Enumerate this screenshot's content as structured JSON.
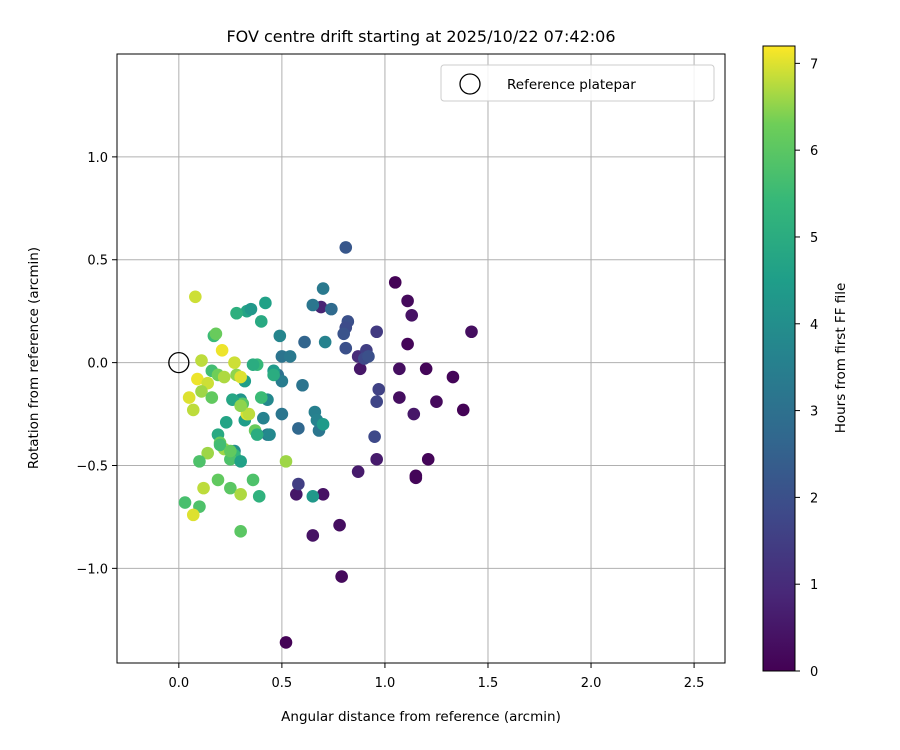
{
  "chart_data": {
    "type": "scatter",
    "title": "FOV centre drift starting at 2025/10/22 07:42:06",
    "xlabel": "Angular distance from reference (arcmin)",
    "ylabel": "Rotation from reference (arcmin)",
    "colorbar_label": "Hours from first FF file",
    "xlim": [
      -0.3,
      2.65
    ],
    "ylim": [
      -1.46,
      1.5
    ],
    "xticks": [
      0.0,
      0.5,
      1.0,
      1.5,
      2.0,
      2.5
    ],
    "xtick_labels": [
      "0.0",
      "0.5",
      "1.0",
      "1.5",
      "2.0",
      "2.5"
    ],
    "yticks": [
      1.0,
      0.5,
      0.0,
      -0.5,
      -1.0
    ],
    "ytick_labels": [
      "1.0",
      "0.5",
      "0.0",
      "−0.5",
      "−1.0"
    ],
    "colorbar_range": [
      0,
      7.2
    ],
    "colorbar_ticks": [
      0,
      1,
      2,
      3,
      4,
      5,
      6,
      7
    ],
    "colorbar_tick_labels": [
      "0",
      "1",
      "2",
      "3",
      "4",
      "5",
      "6",
      "7"
    ],
    "grid": true,
    "legend": {
      "position": "top-right",
      "entries": [
        "Reference platepar"
      ]
    },
    "reference_point": {
      "x": 0.0,
      "y": 0.0
    },
    "points": [
      {
        "x": 0.52,
        "y": -1.36,
        "h": 0.05
      },
      {
        "x": 0.79,
        "y": -1.04,
        "h": 0.2
      },
      {
        "x": 0.78,
        "y": -0.79,
        "h": 0.3
      },
      {
        "x": 0.65,
        "y": -0.84,
        "h": 0.4
      },
      {
        "x": 0.57,
        "y": -0.64,
        "h": 0.5
      },
      {
        "x": 0.7,
        "y": -0.64,
        "h": 0.4
      },
      {
        "x": 0.87,
        "y": -0.53,
        "h": 0.6
      },
      {
        "x": 0.96,
        "y": -0.47,
        "h": 0.6
      },
      {
        "x": 1.15,
        "y": -0.56,
        "h": 0.15
      },
      {
        "x": 1.15,
        "y": -0.55,
        "h": 0.1
      },
      {
        "x": 1.21,
        "y": -0.47,
        "h": 0.1
      },
      {
        "x": 1.05,
        "y": 0.39,
        "h": 0.05
      },
      {
        "x": 1.11,
        "y": 0.3,
        "h": 0.2
      },
      {
        "x": 1.13,
        "y": 0.23,
        "h": 0.4
      },
      {
        "x": 1.42,
        "y": 0.15,
        "h": 0.3
      },
      {
        "x": 1.11,
        "y": 0.09,
        "h": 0.1
      },
      {
        "x": 1.07,
        "y": -0.03,
        "h": 0.3
      },
      {
        "x": 1.2,
        "y": -0.03,
        "h": 0.1
      },
      {
        "x": 1.33,
        "y": -0.07,
        "h": 0.1
      },
      {
        "x": 1.38,
        "y": -0.23,
        "h": 0.05
      },
      {
        "x": 1.25,
        "y": -0.19,
        "h": 0.2
      },
      {
        "x": 1.07,
        "y": -0.17,
        "h": 0.3
      },
      {
        "x": 1.14,
        "y": -0.25,
        "h": 0.5
      },
      {
        "x": 0.96,
        "y": 0.15,
        "h": 1.4
      },
      {
        "x": 0.97,
        "y": -0.13,
        "h": 1.6
      },
      {
        "x": 0.96,
        "y": -0.19,
        "h": 1.7
      },
      {
        "x": 0.95,
        "y": -0.36,
        "h": 1.8
      },
      {
        "x": 0.88,
        "y": -0.03,
        "h": 0.5
      },
      {
        "x": 0.87,
        "y": 0.03,
        "h": 1.0
      },
      {
        "x": 0.91,
        "y": 0.06,
        "h": 1.5
      },
      {
        "x": 0.9,
        "y": 0.02,
        "h": 1.8
      },
      {
        "x": 0.92,
        "y": 0.03,
        "h": 2.0
      },
      {
        "x": 0.81,
        "y": 0.56,
        "h": 2.2
      },
      {
        "x": 0.82,
        "y": 0.2,
        "h": 2.0
      },
      {
        "x": 0.81,
        "y": 0.17,
        "h": 1.9
      },
      {
        "x": 0.8,
        "y": 0.14,
        "h": 2.1
      },
      {
        "x": 0.81,
        "y": 0.07,
        "h": 2.0
      },
      {
        "x": 0.69,
        "y": 0.27,
        "h": 0.8
      },
      {
        "x": 0.7,
        "y": 0.36,
        "h": 3.3
      },
      {
        "x": 0.74,
        "y": 0.26,
        "h": 2.8
      },
      {
        "x": 0.65,
        "y": 0.28,
        "h": 3.2
      },
      {
        "x": 0.61,
        "y": 0.1,
        "h": 2.6
      },
      {
        "x": 0.71,
        "y": 0.1,
        "h": 3.6
      },
      {
        "x": 0.58,
        "y": -0.59,
        "h": 1.5
      },
      {
        "x": 0.58,
        "y": -0.32,
        "h": 2.7
      },
      {
        "x": 0.6,
        "y": -0.11,
        "h": 3.1
      },
      {
        "x": 0.5,
        "y": 0.03,
        "h": 3.1
      },
      {
        "x": 0.54,
        "y": 0.03,
        "h": 3.3
      },
      {
        "x": 0.48,
        "y": -0.06,
        "h": 3.0
      },
      {
        "x": 0.5,
        "y": -0.09,
        "h": 3.4
      },
      {
        "x": 0.5,
        "y": -0.25,
        "h": 3.2
      },
      {
        "x": 0.49,
        "y": 0.13,
        "h": 3.7
      },
      {
        "x": 0.66,
        "y": -0.24,
        "h": 3.5
      },
      {
        "x": 0.68,
        "y": -0.33,
        "h": 3.2
      },
      {
        "x": 0.67,
        "y": -0.28,
        "h": 3.6
      },
      {
        "x": 0.7,
        "y": -0.3,
        "h": 4.4
      },
      {
        "x": 0.65,
        "y": -0.65,
        "h": 4.3
      },
      {
        "x": 0.52,
        "y": -0.48,
        "h": 6.6
      },
      {
        "x": 0.43,
        "y": -0.35,
        "h": 3.3
      },
      {
        "x": 0.44,
        "y": -0.35,
        "h": 3.8
      },
      {
        "x": 0.43,
        "y": -0.18,
        "h": 3.8
      },
      {
        "x": 0.41,
        "y": -0.27,
        "h": 3.6
      },
      {
        "x": 0.46,
        "y": -0.04,
        "h": 4.4
      },
      {
        "x": 0.46,
        "y": -0.06,
        "h": 5.0
      },
      {
        "x": 0.42,
        "y": 0.29,
        "h": 4.6
      },
      {
        "x": 0.4,
        "y": 0.2,
        "h": 4.9
      },
      {
        "x": 0.33,
        "y": 0.25,
        "h": 4.7
      },
      {
        "x": 0.35,
        "y": 0.26,
        "h": 4.3
      },
      {
        "x": 0.28,
        "y": 0.24,
        "h": 5.1
      },
      {
        "x": 0.38,
        "y": -0.01,
        "h": 5.4
      },
      {
        "x": 0.36,
        "y": -0.01,
        "h": 5.0
      },
      {
        "x": 0.32,
        "y": -0.09,
        "h": 4.5
      },
      {
        "x": 0.3,
        "y": -0.18,
        "h": 4.2
      },
      {
        "x": 0.3,
        "y": -0.2,
        "h": 5.2
      },
      {
        "x": 0.31,
        "y": -0.2,
        "h": 5.9
      },
      {
        "x": 0.26,
        "y": -0.18,
        "h": 4.8
      },
      {
        "x": 0.23,
        "y": -0.29,
        "h": 4.7
      },
      {
        "x": 0.32,
        "y": -0.28,
        "h": 4.5
      },
      {
        "x": 0.37,
        "y": -0.33,
        "h": 6.2
      },
      {
        "x": 0.38,
        "y": -0.35,
        "h": 5.0
      },
      {
        "x": 0.4,
        "y": -0.17,
        "h": 5.5
      },
      {
        "x": 0.27,
        "y": -0.43,
        "h": 4.0
      },
      {
        "x": 0.27,
        "y": -0.45,
        "h": 5.4
      },
      {
        "x": 0.25,
        "y": -0.47,
        "h": 5.8
      },
      {
        "x": 0.3,
        "y": -0.48,
        "h": 4.6
      },
      {
        "x": 0.19,
        "y": -0.35,
        "h": 4.9
      },
      {
        "x": 0.2,
        "y": -0.39,
        "h": 6.2
      },
      {
        "x": 0.22,
        "y": -0.42,
        "h": 6.6
      },
      {
        "x": 0.14,
        "y": -0.44,
        "h": 6.6
      },
      {
        "x": 0.1,
        "y": -0.48,
        "h": 5.8
      },
      {
        "x": 0.36,
        "y": -0.57,
        "h": 5.8
      },
      {
        "x": 0.39,
        "y": -0.65,
        "h": 5.2
      },
      {
        "x": 0.25,
        "y": -0.61,
        "h": 6.0
      },
      {
        "x": 0.3,
        "y": -0.64,
        "h": 6.7
      },
      {
        "x": 0.19,
        "y": -0.57,
        "h": 6.1
      },
      {
        "x": 0.12,
        "y": -0.61,
        "h": 6.8
      },
      {
        "x": 0.03,
        "y": -0.68,
        "h": 5.7
      },
      {
        "x": 0.1,
        "y": -0.7,
        "h": 5.8
      },
      {
        "x": 0.07,
        "y": -0.74,
        "h": 7.0
      },
      {
        "x": 0.3,
        "y": -0.82,
        "h": 6.0
      },
      {
        "x": 0.08,
        "y": 0.32,
        "h": 6.9
      },
      {
        "x": 0.17,
        "y": 0.13,
        "h": 5.5
      },
      {
        "x": 0.18,
        "y": 0.14,
        "h": 6.2
      },
      {
        "x": 0.21,
        "y": 0.06,
        "h": 7.1
      },
      {
        "x": 0.27,
        "y": 0.0,
        "h": 6.9
      },
      {
        "x": 0.11,
        "y": 0.01,
        "h": 6.8
      },
      {
        "x": 0.16,
        "y": -0.04,
        "h": 5.6
      },
      {
        "x": 0.19,
        "y": -0.06,
        "h": 6.3
      },
      {
        "x": 0.22,
        "y": -0.07,
        "h": 6.7
      },
      {
        "x": 0.28,
        "y": -0.06,
        "h": 6.5
      },
      {
        "x": 0.3,
        "y": -0.07,
        "h": 7.0
      },
      {
        "x": 0.09,
        "y": -0.08,
        "h": 7.1
      },
      {
        "x": 0.14,
        "y": -0.1,
        "h": 6.9
      },
      {
        "x": 0.11,
        "y": -0.14,
        "h": 6.6
      },
      {
        "x": 0.16,
        "y": -0.17,
        "h": 6.1
      },
      {
        "x": 0.05,
        "y": -0.17,
        "h": 7.0
      },
      {
        "x": 0.07,
        "y": -0.23,
        "h": 6.8
      },
      {
        "x": 0.33,
        "y": -0.25,
        "h": 7.0
      },
      {
        "x": 0.34,
        "y": -0.25,
        "h": 6.8
      },
      {
        "x": 0.3,
        "y": -0.21,
        "h": 6.5
      },
      {
        "x": 0.2,
        "y": -0.4,
        "h": 5.6
      },
      {
        "x": 0.25,
        "y": -0.43,
        "h": 6.1
      }
    ]
  }
}
